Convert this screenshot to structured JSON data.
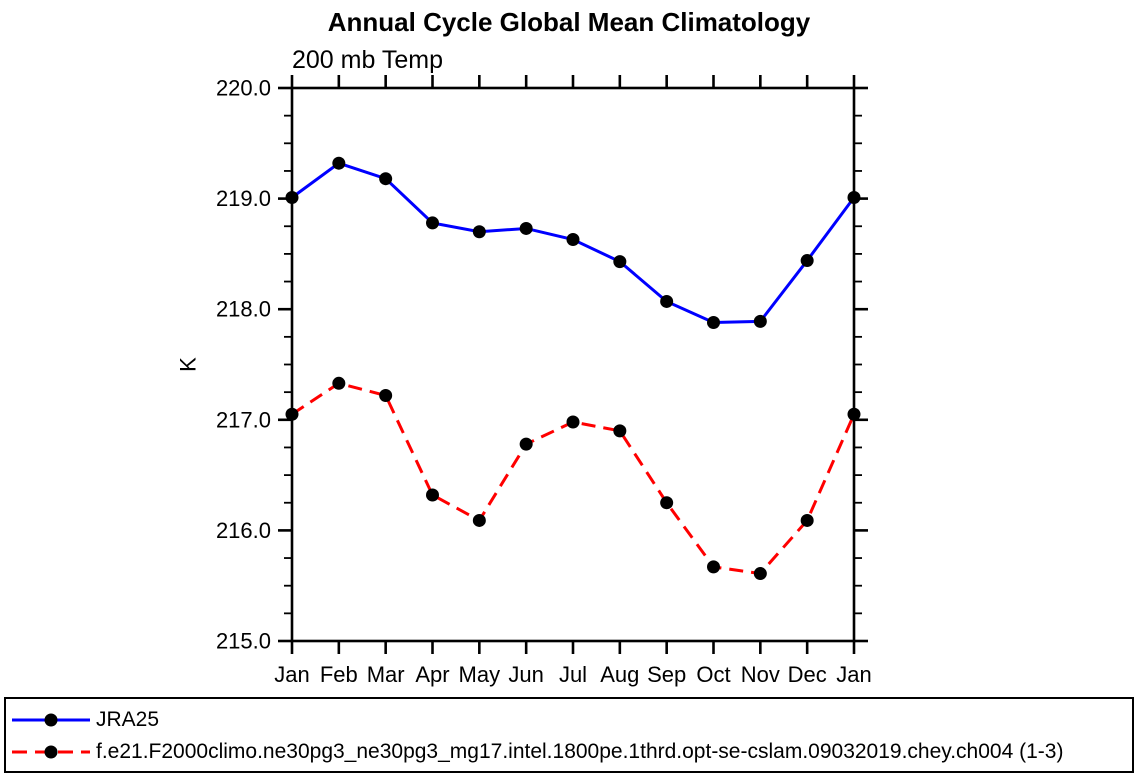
{
  "chart_data": {
    "type": "line",
    "title": "Annual Cycle Global Mean Climatology",
    "subtitle": "200 mb Temp",
    "ylabel": "K",
    "ylim": [
      215.0,
      220.0
    ],
    "y_major_tick_labels": [
      "215.0",
      "216.0",
      "217.0",
      "218.0",
      "219.0",
      "220.0"
    ],
    "y_minor_interval": 0.25,
    "x_categories": [
      "Jan",
      "Feb",
      "Mar",
      "Apr",
      "May",
      "Jun",
      "Jul",
      "Aug",
      "Sep",
      "Oct",
      "Nov",
      "Dec",
      "Jan"
    ],
    "grid": false,
    "legend_position": "bottom",
    "axis_color": "#000000",
    "series": [
      {
        "name": "JRA25",
        "line_color": "#0000ff",
        "line_style": "solid",
        "marker": "circle",
        "marker_color": "#000000",
        "values": [
          219.01,
          219.32,
          219.18,
          218.78,
          218.7,
          218.73,
          218.63,
          218.43,
          218.07,
          217.88,
          217.89,
          218.44,
          219.01
        ]
      },
      {
        "name": "f.e21.F2000climo.ne30pg3_ne30pg3_mg17.intel.1800pe.1thrd.opt-se-cslam.09032019.chey.ch004 (1-3)",
        "line_color": "#ff0000",
        "line_style": "dashed",
        "marker": "circle",
        "marker_color": "#000000",
        "values": [
          217.05,
          217.33,
          217.22,
          216.32,
          216.09,
          216.78,
          216.98,
          216.9,
          216.25,
          215.67,
          215.61,
          216.09,
          217.05
        ]
      }
    ]
  }
}
